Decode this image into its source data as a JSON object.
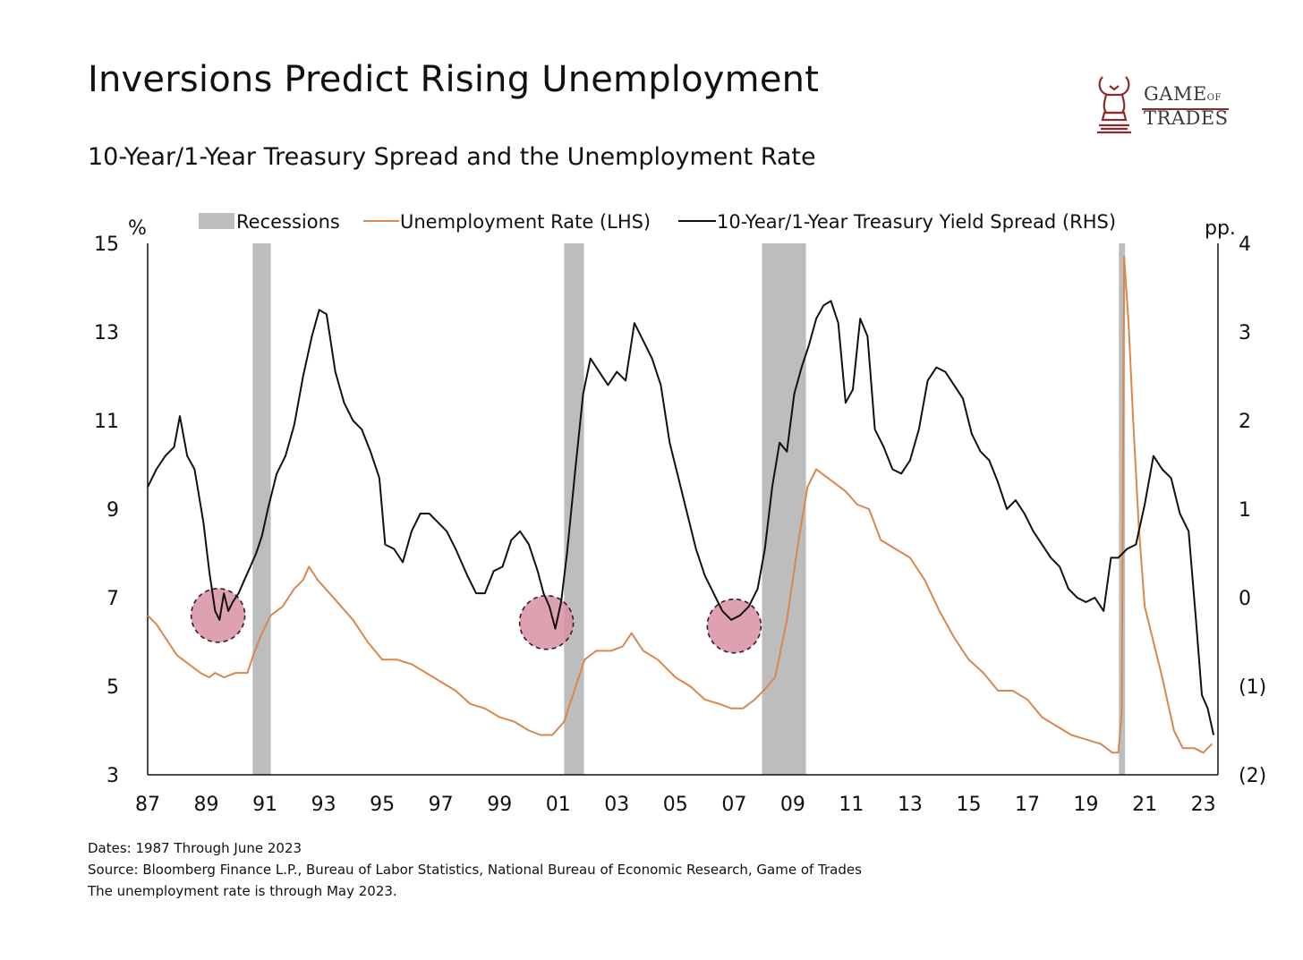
{
  "header": {
    "title": "Inversions Predict Rising Unemployment",
    "subtitle": "10-Year/1-Year Treasury Spread and the Unemployment Rate"
  },
  "logo": {
    "line1": "GAME",
    "line1_small": "OF",
    "line2": "TRADES"
  },
  "footnotes": [
    "Dates: 1987 Through June 2023",
    "Source: Bloomberg Finance L.P., Bureau of Labor Statistics, National Bureau of Economic Research, Game of Trades",
    "The unemployment rate is through May 2023."
  ],
  "colors": {
    "unemployment": "#d9874a",
    "spread": "#111111",
    "recession": "#bdbdbd",
    "highlight_fill": "#d890a4",
    "highlight_stroke": "#3a1a22"
  },
  "chart_data": {
    "type": "line",
    "left_axis": {
      "unit": "%",
      "ylim": [
        3,
        15
      ],
      "ticks": [
        3,
        5,
        7,
        9,
        11,
        13,
        15
      ]
    },
    "right_axis": {
      "unit": "pp.",
      "ylim": [
        -2,
        4
      ],
      "ticks": [
        -2,
        -1,
        0,
        1,
        2,
        3,
        4
      ],
      "tick_labels": [
        "(2)",
        "(1)",
        "0",
        "1",
        "2",
        "3",
        "4"
      ]
    },
    "x_axis": {
      "xlim": [
        1987.0,
        2023.5
      ],
      "ticks": [
        1987,
        1989,
        1991,
        1993,
        1995,
        1997,
        1999,
        2001,
        2003,
        2005,
        2007,
        2009,
        2011,
        2013,
        2015,
        2017,
        2019,
        2021,
        2023
      ],
      "tick_labels": [
        "87",
        "89",
        "91",
        "93",
        "95",
        "97",
        "99",
        "01",
        "03",
        "05",
        "07",
        "09",
        "11",
        "13",
        "15",
        "17",
        "19",
        "21",
        "23"
      ]
    },
    "legend": {
      "position": "top",
      "items": [
        "Recessions",
        "Unemployment Rate (LHS)",
        "10-Year/1-Year Treasury Yield Spread (RHS)"
      ]
    },
    "recessions": [
      {
        "start": 1990.58,
        "end": 1991.2
      },
      {
        "start": 2001.2,
        "end": 2001.88
      },
      {
        "start": 2007.95,
        "end": 2009.45
      },
      {
        "start": 2020.12,
        "end": 2020.33
      }
    ],
    "inversion_highlights": [
      {
        "x": 1989.4,
        "y": -0.2
      },
      {
        "x": 2000.6,
        "y": -0.28
      },
      {
        "x": 2007.0,
        "y": -0.32
      }
    ],
    "series": [
      {
        "name": "Unemployment Rate (LHS)",
        "axis": "left",
        "x": [
          1987.0,
          1987.3,
          1987.7,
          1988.0,
          1988.4,
          1988.8,
          1989.1,
          1989.3,
          1989.6,
          1990.0,
          1990.4,
          1990.6,
          1990.9,
          1991.2,
          1991.6,
          1992.0,
          1992.3,
          1992.5,
          1992.8,
          1993.2,
          1993.6,
          1994.0,
          1994.5,
          1995.0,
          1995.5,
          1996.0,
          1996.5,
          1997.0,
          1997.5,
          1998.0,
          1998.5,
          1999.0,
          1999.5,
          2000.0,
          2000.4,
          2000.8,
          2001.2,
          2001.5,
          2001.9,
          2002.3,
          2002.8,
          2003.2,
          2003.5,
          2003.9,
          2004.4,
          2005.0,
          2005.5,
          2006.0,
          2006.5,
          2006.9,
          2007.3,
          2007.7,
          2008.0,
          2008.4,
          2008.8,
          2009.2,
          2009.5,
          2009.8,
          2010.0,
          2010.4,
          2010.8,
          2011.2,
          2011.6,
          2012.0,
          2012.5,
          2013.0,
          2013.5,
          2014.0,
          2014.5,
          2015.0,
          2015.5,
          2016.0,
          2016.5,
          2017.0,
          2017.5,
          2018.0,
          2018.5,
          2019.0,
          2019.5,
          2019.9,
          2020.1,
          2020.22,
          2020.3,
          2020.45,
          2020.6,
          2020.8,
          2021.0,
          2021.3,
          2021.6,
          2022.0,
          2022.3,
          2022.7,
          2023.0,
          2023.3
        ],
        "y": [
          6.6,
          6.4,
          6.0,
          5.7,
          5.5,
          5.3,
          5.2,
          5.3,
          5.2,
          5.3,
          5.3,
          5.7,
          6.2,
          6.6,
          6.8,
          7.2,
          7.4,
          7.7,
          7.4,
          7.1,
          6.8,
          6.5,
          6.0,
          5.6,
          5.6,
          5.5,
          5.3,
          5.1,
          4.9,
          4.6,
          4.5,
          4.3,
          4.2,
          4.0,
          3.9,
          3.9,
          4.2,
          4.8,
          5.6,
          5.8,
          5.8,
          5.9,
          6.2,
          5.8,
          5.6,
          5.2,
          5.0,
          4.7,
          4.6,
          4.5,
          4.5,
          4.7,
          4.9,
          5.2,
          6.5,
          8.3,
          9.5,
          9.9,
          9.8,
          9.6,
          9.4,
          9.1,
          9.0,
          8.3,
          8.1,
          7.9,
          7.4,
          6.7,
          6.1,
          5.6,
          5.3,
          4.9,
          4.9,
          4.7,
          4.3,
          4.1,
          3.9,
          3.8,
          3.7,
          3.5,
          3.5,
          4.4,
          14.7,
          13.2,
          11.1,
          8.6,
          6.8,
          6.0,
          5.2,
          4.0,
          3.6,
          3.6,
          3.5,
          3.7
        ]
      },
      {
        "name": "10-Year/1-Year Treasury Yield Spread (RHS)",
        "axis": "right",
        "x": [
          1987.0,
          1987.3,
          1987.6,
          1987.9,
          1988.1,
          1988.35,
          1988.6,
          1988.9,
          1989.1,
          1989.3,
          1989.45,
          1989.6,
          1989.75,
          1989.9,
          1990.1,
          1990.3,
          1990.5,
          1990.7,
          1990.9,
          1991.1,
          1991.4,
          1991.7,
          1992.0,
          1992.3,
          1992.6,
          1992.85,
          1993.1,
          1993.4,
          1993.7,
          1994.0,
          1994.3,
          1994.6,
          1994.9,
          1995.1,
          1995.4,
          1995.7,
          1996.0,
          1996.3,
          1996.6,
          1996.9,
          1997.2,
          1997.5,
          1997.9,
          1998.2,
          1998.5,
          1998.8,
          1999.1,
          1999.4,
          1999.7,
          2000.0,
          2000.3,
          2000.5,
          2000.7,
          2000.9,
          2001.1,
          2001.3,
          2001.6,
          2001.85,
          2002.1,
          2002.4,
          2002.7,
          2003.0,
          2003.3,
          2003.6,
          2003.9,
          2004.2,
          2004.5,
          2004.8,
          2005.1,
          2005.4,
          2005.7,
          2006.0,
          2006.3,
          2006.6,
          2006.9,
          2007.2,
          2007.5,
          2007.8,
          2008.05,
          2008.3,
          2008.55,
          2008.8,
          2009.05,
          2009.3,
          2009.55,
          2009.8,
          2010.05,
          2010.3,
          2010.55,
          2010.8,
          2011.05,
          2011.3,
          2011.55,
          2011.8,
          2012.1,
          2012.4,
          2012.7,
          2013.0,
          2013.3,
          2013.6,
          2013.9,
          2014.2,
          2014.5,
          2014.8,
          2015.1,
          2015.4,
          2015.7,
          2016.0,
          2016.3,
          2016.6,
          2016.9,
          2017.2,
          2017.5,
          2017.8,
          2018.1,
          2018.4,
          2018.7,
          2019.0,
          2019.3,
          2019.6,
          2019.85,
          2020.1,
          2020.4,
          2020.7,
          2021.0,
          2021.3,
          2021.6,
          2021.9,
          2022.2,
          2022.5,
          2022.75,
          2022.95,
          2023.15,
          2023.35
        ],
        "y": [
          1.25,
          1.45,
          1.6,
          1.7,
          2.05,
          1.6,
          1.45,
          0.85,
          0.3,
          -0.15,
          -0.25,
          0.05,
          -0.15,
          -0.05,
          0.05,
          0.2,
          0.35,
          0.5,
          0.7,
          1.0,
          1.4,
          1.6,
          1.95,
          2.5,
          2.95,
          3.25,
          3.2,
          2.55,
          2.2,
          2.0,
          1.9,
          1.65,
          1.35,
          0.6,
          0.55,
          0.4,
          0.75,
          0.95,
          0.95,
          0.85,
          0.75,
          0.55,
          0.25,
          0.05,
          0.05,
          0.3,
          0.35,
          0.65,
          0.75,
          0.6,
          0.3,
          0.05,
          -0.1,
          -0.35,
          -0.05,
          0.5,
          1.5,
          2.3,
          2.7,
          2.55,
          2.4,
          2.55,
          2.45,
          3.1,
          2.9,
          2.7,
          2.4,
          1.75,
          1.35,
          0.95,
          0.55,
          0.25,
          0.05,
          -0.15,
          -0.25,
          -0.2,
          -0.1,
          0.1,
          0.55,
          1.25,
          1.75,
          1.65,
          2.3,
          2.6,
          2.85,
          3.15,
          3.3,
          3.35,
          3.1,
          2.2,
          2.35,
          3.15,
          2.95,
          1.9,
          1.7,
          1.45,
          1.4,
          1.55,
          1.9,
          2.45,
          2.6,
          2.55,
          2.4,
          2.25,
          1.85,
          1.65,
          1.55,
          1.3,
          1.0,
          1.1,
          0.95,
          0.75,
          0.6,
          0.45,
          0.35,
          0.1,
          0.0,
          -0.05,
          0.0,
          -0.15,
          0.45,
          0.45,
          0.55,
          0.6,
          1.05,
          1.6,
          1.45,
          1.35,
          0.95,
          0.75,
          -0.25,
          -1.1,
          -1.25,
          -1.55
        ]
      }
    ]
  }
}
